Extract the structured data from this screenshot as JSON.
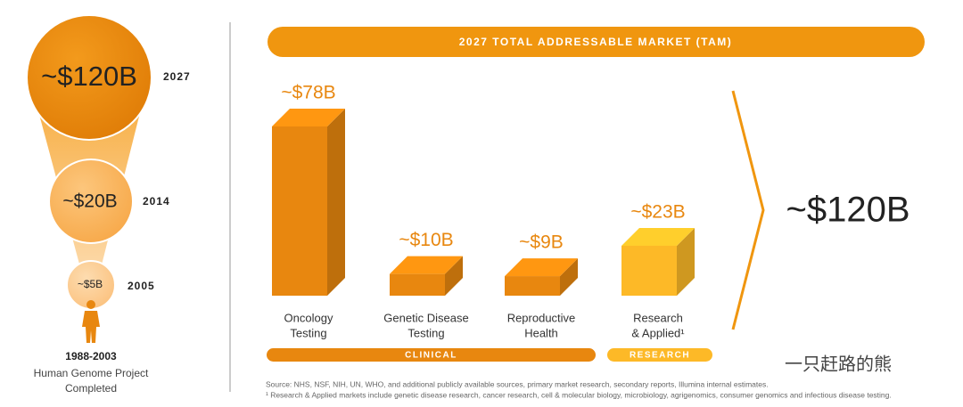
{
  "chart_data": {
    "type": "bar",
    "title": "2027 TOTAL ADDRESSABLE MARKET (TAM)",
    "categories": [
      [
        "Oncology",
        "Testing"
      ],
      [
        "Genetic Disease",
        "Testing"
      ],
      [
        "Reproductive",
        "Health"
      ],
      [
        "Research",
        "& Applied¹"
      ]
    ],
    "values": [
      78,
      10,
      9,
      23
    ],
    "value_labels": [
      "~$78B",
      "~$10B",
      "~$9B",
      "~$23B"
    ],
    "colors": [
      "#e8870f",
      "#e8870f",
      "#e8870f",
      "#fdb927"
    ],
    "groups": [
      "CLINICAL",
      "RESEARCH"
    ],
    "group_colors": [
      "#e8870f",
      "#fdb927"
    ],
    "total": "~$120B"
  },
  "timeline": [
    {
      "value": "~$120B",
      "year": "2027"
    },
    {
      "value": "~$20B",
      "year": "2014"
    },
    {
      "value": "~$5B",
      "year": "2005"
    }
  ],
  "origin": {
    "years": "1988-2003",
    "label": [
      "Human Genome Project",
      "Completed"
    ]
  },
  "sources": [
    "Source: NHS, NSF, NIH, UN, WHO, and additional publicly available sources, primary market research, secondary reports, Illumina internal estimates.",
    "¹ Research & Applied markets include genetic disease research, cancer research, cell & molecular biology, microbiology, agrigenomics, consumer genomics and infectious disease testing."
  ],
  "watermark": "一只赶路的熊"
}
